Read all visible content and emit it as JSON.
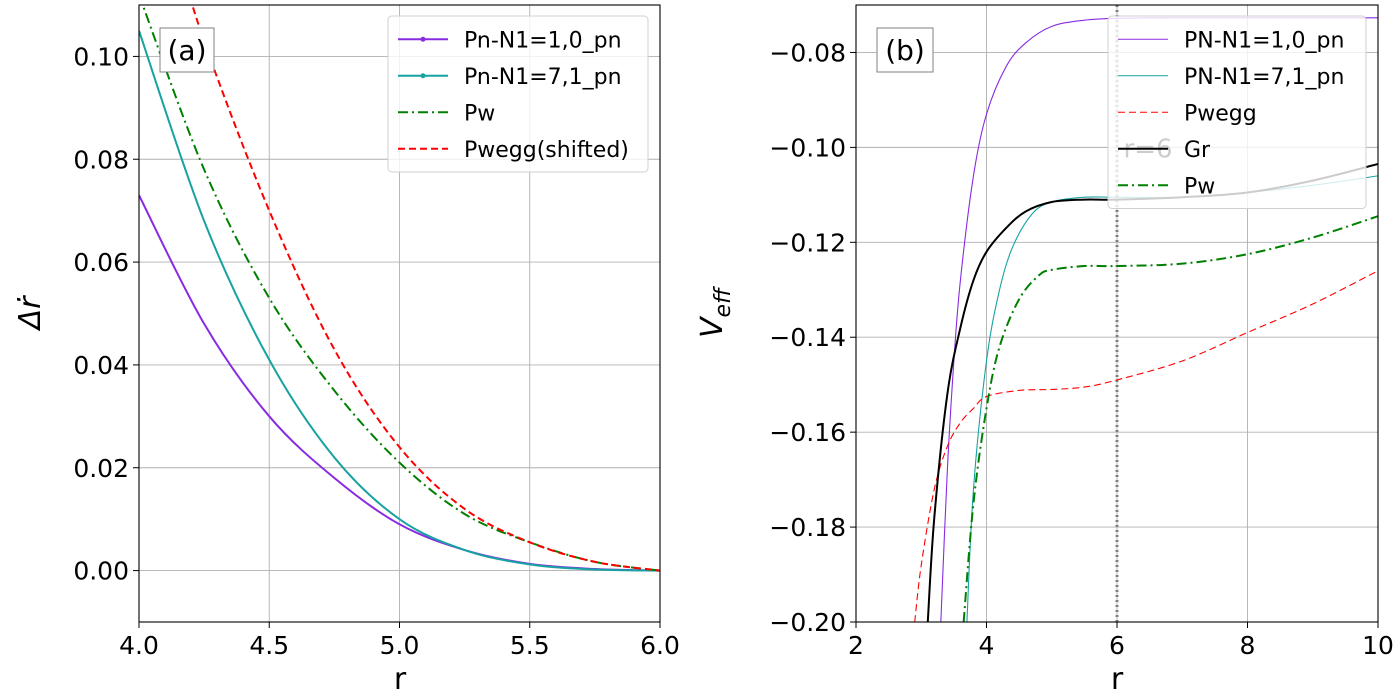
{
  "chart_data": [
    {
      "type": "line",
      "panel_label": "(a)",
      "xlabel": "r",
      "ylabel": "Δṙ",
      "xlim": [
        4.0,
        6.0
      ],
      "ylim": [
        -0.01,
        0.11
      ],
      "xticks": [
        4.0,
        4.5,
        5.0,
        5.5,
        6.0
      ],
      "xtick_labels": [
        "4.0",
        "4.5",
        "5.0",
        "5.5",
        "6.0"
      ],
      "yticks": [
        0.0,
        0.02,
        0.04,
        0.06,
        0.08,
        0.1
      ],
      "ytick_labels": [
        "0.00",
        "0.02",
        "0.04",
        "0.06",
        "0.08",
        "0.10"
      ],
      "grid": true,
      "legend_position": "top-right",
      "series": [
        {
          "name": "Pn-N1=1,0_pn",
          "color": "#8a2be2",
          "style": "solid-marker",
          "x": [
            4.0,
            4.25,
            4.5,
            4.75,
            5.0,
            5.25,
            5.5,
            5.75,
            6.0
          ],
          "y": [
            0.073,
            0.048,
            0.03,
            0.018,
            0.009,
            0.004,
            0.0013,
            0.0003,
            0.0
          ]
        },
        {
          "name": "Pn-N1=7,1_pn",
          "color": "#17a2a2",
          "style": "solid-marker",
          "x": [
            4.0,
            4.25,
            4.5,
            4.75,
            5.0,
            5.25,
            5.5,
            5.75,
            6.0
          ],
          "y": [
            0.105,
            0.068,
            0.041,
            0.022,
            0.01,
            0.004,
            0.0012,
            0.0002,
            0.0
          ]
        },
        {
          "name": "Pw",
          "color": "#008000",
          "style": "dashdot",
          "x": [
            4.0,
            4.25,
            4.5,
            4.75,
            5.0,
            5.25,
            5.5,
            5.75,
            6.0
          ],
          "y": [
            0.112,
            0.078,
            0.053,
            0.035,
            0.021,
            0.011,
            0.0055,
            0.0017,
            0.0
          ]
        },
        {
          "name": "Pwegg(shifted)",
          "color": "#ff0000",
          "style": "dashed",
          "x": [
            4.1,
            4.25,
            4.5,
            4.75,
            5.0,
            5.25,
            5.5,
            5.75,
            6.0
          ],
          "y": [
            0.128,
            0.103,
            0.07,
            0.043,
            0.024,
            0.012,
            0.0055,
            0.0017,
            0.0
          ]
        }
      ]
    },
    {
      "type": "line",
      "panel_label": "(b)",
      "xlabel": "r",
      "ylabel": "V_eff",
      "xlim": [
        2,
        10
      ],
      "ylim": [
        -0.2,
        -0.07
      ],
      "xticks": [
        2,
        4,
        6,
        8,
        10
      ],
      "xtick_labels": [
        "2",
        "4",
        "6",
        "8",
        "10"
      ],
      "yticks": [
        -0.2,
        -0.18,
        -0.16,
        -0.14,
        -0.12,
        -0.1,
        -0.08
      ],
      "ytick_labels": [
        "−0.20",
        "−0.18",
        "−0.16",
        "−0.14",
        "−0.12",
        "−0.10",
        "−0.08"
      ],
      "grid": true,
      "legend_position": "top-right",
      "annotations": [
        {
          "type": "vline",
          "x": 6,
          "color": "#808080",
          "style": "dotted"
        },
        {
          "type": "text",
          "text": "r=6",
          "x": 6.1,
          "y": -0.1,
          "color": "#d0d0d0"
        }
      ],
      "series": [
        {
          "name": "PN-N1=1,0_pn",
          "color": "#8a2be2",
          "style": "solid-thin",
          "x": [
            3.3,
            3.4,
            3.5,
            3.6,
            3.8,
            4.0,
            4.3,
            4.6,
            5.0,
            5.5,
            6.0,
            7.0,
            8.0,
            10.0
          ],
          "y": [
            -0.2,
            -0.168,
            -0.145,
            -0.128,
            -0.106,
            -0.093,
            -0.083,
            -0.078,
            -0.0745,
            -0.0732,
            -0.0728,
            -0.0727,
            -0.0727,
            -0.0727
          ]
        },
        {
          "name": "PN-N1=7,1_pn",
          "color": "#17a2a2",
          "style": "solid-thin",
          "x": [
            3.7,
            3.8,
            4.0,
            4.2,
            4.4,
            4.7,
            5.0,
            5.5,
            6.0,
            7.0,
            8.0,
            9.0,
            10.0
          ],
          "y": [
            -0.2,
            -0.172,
            -0.145,
            -0.13,
            -0.121,
            -0.114,
            -0.1115,
            -0.1105,
            -0.1105,
            -0.1105,
            -0.1095,
            -0.108,
            -0.106
          ]
        },
        {
          "name": "Pwegg",
          "color": "#ff0000",
          "style": "dashed-thin",
          "x": [
            2.9,
            3.0,
            3.2,
            3.4,
            3.6,
            3.8,
            4.0,
            4.5,
            5.0,
            5.5,
            6.0,
            7.0,
            8.0,
            9.0,
            10.0
          ],
          "y": [
            -0.2,
            -0.188,
            -0.172,
            -0.163,
            -0.158,
            -0.155,
            -0.1525,
            -0.1512,
            -0.151,
            -0.1505,
            -0.149,
            -0.145,
            -0.139,
            -0.133,
            -0.126
          ]
        },
        {
          "name": "Gr",
          "color": "#000000",
          "style": "solid",
          "x": [
            3.1,
            3.2,
            3.4,
            3.6,
            3.8,
            4.0,
            4.3,
            4.6,
            5.0,
            5.5,
            6.0,
            7.0,
            8.0,
            9.0,
            10.0
          ],
          "y": [
            -0.2,
            -0.178,
            -0.152,
            -0.138,
            -0.128,
            -0.122,
            -0.117,
            -0.1135,
            -0.1115,
            -0.111,
            -0.111,
            -0.1105,
            -0.1095,
            -0.107,
            -0.1035
          ]
        },
        {
          "name": "Pw",
          "color": "#008000",
          "style": "dashdot",
          "x": [
            3.65,
            3.8,
            4.0,
            4.2,
            4.5,
            4.8,
            5.0,
            5.5,
            6.0,
            7.0,
            8.0,
            9.0,
            10.0
          ],
          "y": [
            -0.2,
            -0.175,
            -0.155,
            -0.142,
            -0.132,
            -0.127,
            -0.1258,
            -0.125,
            -0.125,
            -0.1245,
            -0.1225,
            -0.119,
            -0.1145
          ]
        }
      ]
    }
  ]
}
